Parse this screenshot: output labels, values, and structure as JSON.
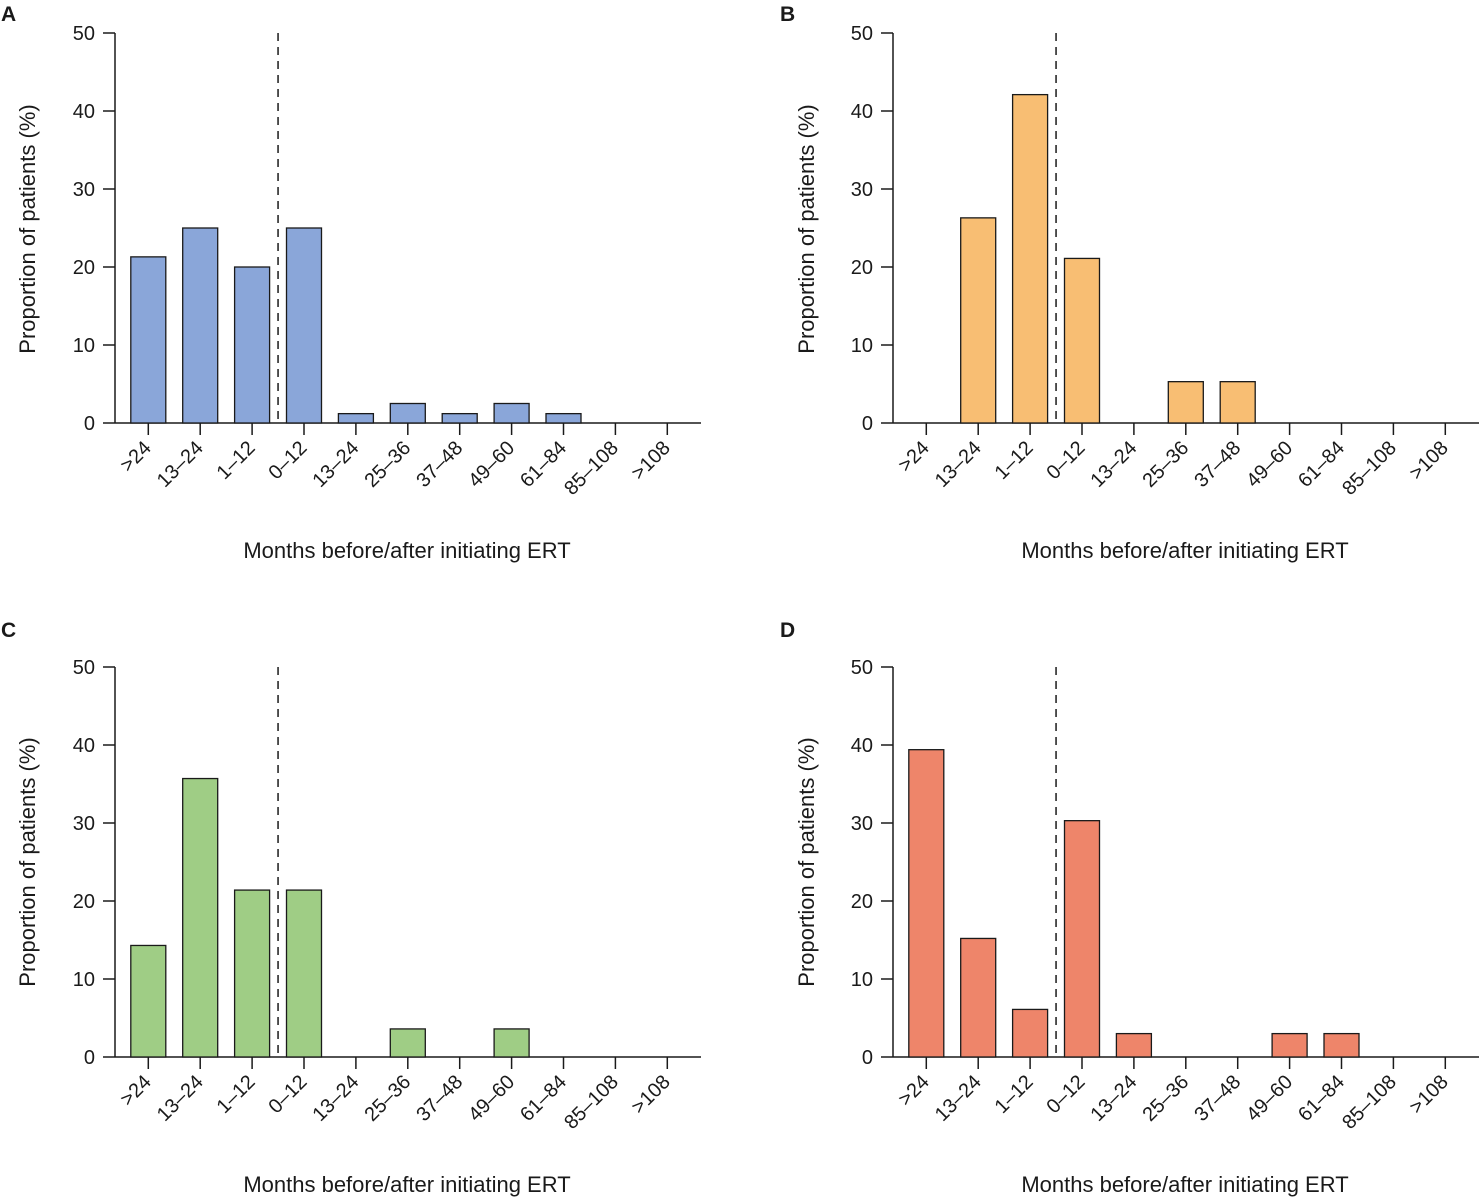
{
  "figure": {
    "y_axis_label": "Proportion of patients (%)",
    "x_axis_label": "Months before/after initiating ERT"
  },
  "chart_data": [
    {
      "panel": "A",
      "type": "bar",
      "color": "#8aa6d9",
      "categories": [
        ">24",
        "13–24",
        "1–12",
        "0–12",
        "13–24",
        "25–36",
        "37–48",
        "49–60",
        "61–84",
        "85–108",
        ">108"
      ],
      "values": [
        21.3,
        25.0,
        20.0,
        25.0,
        1.2,
        2.5,
        1.2,
        2.5,
        1.2,
        0,
        0
      ],
      "xlabel": "Months before/after initiating ERT",
      "ylabel": "Proportion of patients (%)",
      "ylim": [
        0,
        50
      ],
      "yticks": [
        0,
        10,
        20,
        30,
        40,
        50
      ],
      "reference_line": "dashed vertical line between 1–12 (before) and 0–12 (after)"
    },
    {
      "panel": "B",
      "type": "bar",
      "color": "#f8be73",
      "categories": [
        ">24",
        "13–24",
        "1–12",
        "0–12",
        "13–24",
        "25–36",
        "37–48",
        "49–60",
        "61–84",
        "85–108",
        ">108"
      ],
      "values": [
        0,
        26.3,
        42.1,
        21.1,
        0,
        5.3,
        5.3,
        0,
        0,
        0,
        0
      ],
      "xlabel": "Months before/after initiating ERT",
      "ylabel": "Proportion of patients (%)",
      "ylim": [
        0,
        50
      ],
      "yticks": [
        0,
        10,
        20,
        30,
        40,
        50
      ],
      "reference_line": "dashed vertical line between 1–12 (before) and 0–12 (after)"
    },
    {
      "panel": "C",
      "type": "bar",
      "color": "#9fcd85",
      "categories": [
        ">24",
        "13–24",
        "1–12",
        "0–12",
        "13–24",
        "25–36",
        "37–48",
        "49–60",
        "61–84",
        "85–108",
        ">108"
      ],
      "values": [
        14.3,
        35.7,
        21.4,
        21.4,
        0,
        3.6,
        0,
        3.6,
        0,
        0,
        0
      ],
      "xlabel": "Months before/after initiating ERT",
      "ylabel": "Proportion of patients (%)",
      "ylim": [
        0,
        50
      ],
      "yticks": [
        0,
        10,
        20,
        30,
        40,
        50
      ],
      "reference_line": "dashed vertical line between 1–12 (before) and 0–12 (after)"
    },
    {
      "panel": "D",
      "type": "bar",
      "color": "#ee856a",
      "categories": [
        ">24",
        "13–24",
        "1–12",
        "0–12",
        "13–24",
        "25–36",
        "37–48",
        "49–60",
        "61–84",
        "85–108",
        ">108"
      ],
      "values": [
        39.4,
        15.2,
        6.1,
        30.3,
        3.0,
        0,
        0,
        3.0,
        3.0,
        0,
        0
      ],
      "xlabel": "Months before/after initiating ERT",
      "ylabel": "Proportion of patients (%)",
      "ylim": [
        0,
        50
      ],
      "yticks": [
        0,
        10,
        20,
        30,
        40,
        50
      ],
      "reference_line": "dashed vertical line between 1–12 (before) and 0–12 (after)"
    }
  ]
}
